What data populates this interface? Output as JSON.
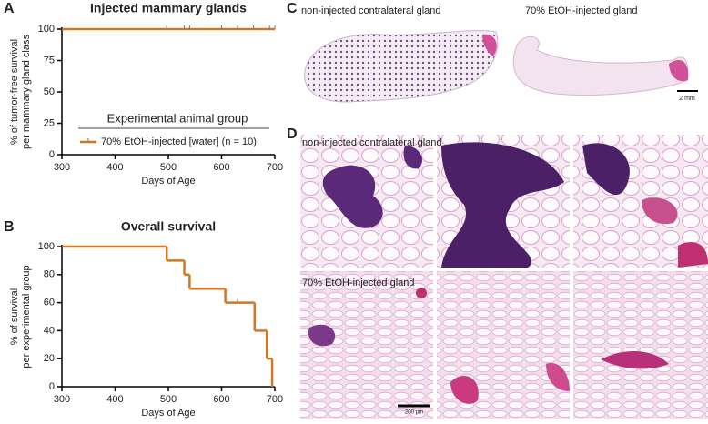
{
  "chart_data": [
    {
      "type": "step",
      "panel": "A",
      "title": "Injected mammary glands",
      "ylabel": [
        "% of tumor-free survival",
        "per mammary gland class"
      ],
      "xlabel": "Days of Age",
      "xlim": [
        300,
        700
      ],
      "xticks": [
        300,
        400,
        500,
        600,
        700
      ],
      "ylim": [
        0,
        100
      ],
      "yticks": [
        0,
        25,
        50,
        75,
        100
      ],
      "legend_title": "Experimental animal group",
      "series": [
        {
          "name": "70% EtOH-injected [water] (n = 10)",
          "color": "#d2771f",
          "x": [
            300,
            700
          ],
          "values": [
            100,
            100
          ],
          "censored": {
            "x": [
              497,
              530,
              540,
              600,
              630,
              660,
              690,
              700
            ],
            "values": [
              100,
              100,
              100,
              100,
              100,
              100,
              100,
              100
            ]
          }
        }
      ]
    },
    {
      "type": "step",
      "panel": "B",
      "title": "Overall survival",
      "ylabel": [
        "% of survival",
        "per experimental group"
      ],
      "xlabel": "Days of Age",
      "xlim": [
        300,
        700
      ],
      "xticks": [
        300,
        400,
        500,
        600,
        700
      ],
      "ylim": [
        0,
        100
      ],
      "yticks": [
        0,
        20,
        40,
        60,
        80,
        100
      ],
      "series": [
        {
          "color": "#d2771f",
          "x": [
            300,
            497,
            530,
            540,
            607,
            662,
            685,
            695
          ],
          "values": [
            100,
            90,
            80,
            70,
            60,
            40,
            20,
            0
          ],
          "censored": {
            "x": [
              630
            ],
            "values": [
              60
            ]
          }
        }
      ]
    }
  ],
  "panels": {
    "c_label": "C",
    "c_left": "non-injected contralateral gland",
    "c_right": "70% EtOH-injected gland",
    "c_scale": "2 mm",
    "d_label": "D",
    "d_top": "non-injected contralateral gland",
    "d_bottom": "70% EtOH-injected gland",
    "d_scale": "200 µm"
  }
}
